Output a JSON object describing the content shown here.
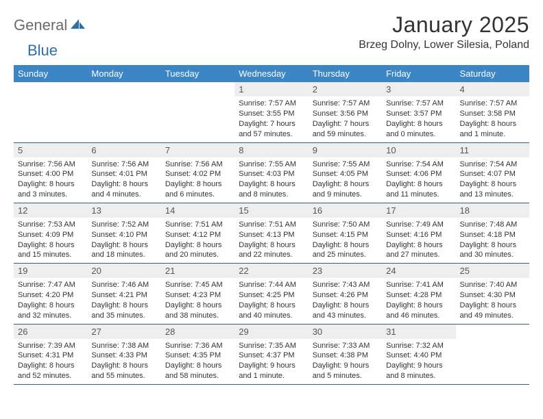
{
  "logo": {
    "part1": "General",
    "part2": "Blue"
  },
  "title": "January 2025",
  "location": "Brzeg Dolny, Lower Silesia, Poland",
  "weekday_header_bg": "#3d86c6",
  "weekday_header_fg": "#ffffff",
  "daynum_bg": "#eeeeee",
  "rule_color": "#2b5d89",
  "weekdays": [
    "Sunday",
    "Monday",
    "Tuesday",
    "Wednesday",
    "Thursday",
    "Friday",
    "Saturday"
  ],
  "weeks": [
    [
      null,
      null,
      null,
      {
        "n": "1",
        "sunrise": "7:57 AM",
        "sunset": "3:55 PM",
        "daylight": "7 hours and 57 minutes."
      },
      {
        "n": "2",
        "sunrise": "7:57 AM",
        "sunset": "3:56 PM",
        "daylight": "7 hours and 59 minutes."
      },
      {
        "n": "3",
        "sunrise": "7:57 AM",
        "sunset": "3:57 PM",
        "daylight": "8 hours and 0 minutes."
      },
      {
        "n": "4",
        "sunrise": "7:57 AM",
        "sunset": "3:58 PM",
        "daylight": "8 hours and 1 minute."
      }
    ],
    [
      {
        "n": "5",
        "sunrise": "7:56 AM",
        "sunset": "4:00 PM",
        "daylight": "8 hours and 3 minutes."
      },
      {
        "n": "6",
        "sunrise": "7:56 AM",
        "sunset": "4:01 PM",
        "daylight": "8 hours and 4 minutes."
      },
      {
        "n": "7",
        "sunrise": "7:56 AM",
        "sunset": "4:02 PM",
        "daylight": "8 hours and 6 minutes."
      },
      {
        "n": "8",
        "sunrise": "7:55 AM",
        "sunset": "4:03 PM",
        "daylight": "8 hours and 8 minutes."
      },
      {
        "n": "9",
        "sunrise": "7:55 AM",
        "sunset": "4:05 PM",
        "daylight": "8 hours and 9 minutes."
      },
      {
        "n": "10",
        "sunrise": "7:54 AM",
        "sunset": "4:06 PM",
        "daylight": "8 hours and 11 minutes."
      },
      {
        "n": "11",
        "sunrise": "7:54 AM",
        "sunset": "4:07 PM",
        "daylight": "8 hours and 13 minutes."
      }
    ],
    [
      {
        "n": "12",
        "sunrise": "7:53 AM",
        "sunset": "4:09 PM",
        "daylight": "8 hours and 15 minutes."
      },
      {
        "n": "13",
        "sunrise": "7:52 AM",
        "sunset": "4:10 PM",
        "daylight": "8 hours and 18 minutes."
      },
      {
        "n": "14",
        "sunrise": "7:51 AM",
        "sunset": "4:12 PM",
        "daylight": "8 hours and 20 minutes."
      },
      {
        "n": "15",
        "sunrise": "7:51 AM",
        "sunset": "4:13 PM",
        "daylight": "8 hours and 22 minutes."
      },
      {
        "n": "16",
        "sunrise": "7:50 AM",
        "sunset": "4:15 PM",
        "daylight": "8 hours and 25 minutes."
      },
      {
        "n": "17",
        "sunrise": "7:49 AM",
        "sunset": "4:16 PM",
        "daylight": "8 hours and 27 minutes."
      },
      {
        "n": "18",
        "sunrise": "7:48 AM",
        "sunset": "4:18 PM",
        "daylight": "8 hours and 30 minutes."
      }
    ],
    [
      {
        "n": "19",
        "sunrise": "7:47 AM",
        "sunset": "4:20 PM",
        "daylight": "8 hours and 32 minutes."
      },
      {
        "n": "20",
        "sunrise": "7:46 AM",
        "sunset": "4:21 PM",
        "daylight": "8 hours and 35 minutes."
      },
      {
        "n": "21",
        "sunrise": "7:45 AM",
        "sunset": "4:23 PM",
        "daylight": "8 hours and 38 minutes."
      },
      {
        "n": "22",
        "sunrise": "7:44 AM",
        "sunset": "4:25 PM",
        "daylight": "8 hours and 40 minutes."
      },
      {
        "n": "23",
        "sunrise": "7:43 AM",
        "sunset": "4:26 PM",
        "daylight": "8 hours and 43 minutes."
      },
      {
        "n": "24",
        "sunrise": "7:41 AM",
        "sunset": "4:28 PM",
        "daylight": "8 hours and 46 minutes."
      },
      {
        "n": "25",
        "sunrise": "7:40 AM",
        "sunset": "4:30 PM",
        "daylight": "8 hours and 49 minutes."
      }
    ],
    [
      {
        "n": "26",
        "sunrise": "7:39 AM",
        "sunset": "4:31 PM",
        "daylight": "8 hours and 52 minutes."
      },
      {
        "n": "27",
        "sunrise": "7:38 AM",
        "sunset": "4:33 PM",
        "daylight": "8 hours and 55 minutes."
      },
      {
        "n": "28",
        "sunrise": "7:36 AM",
        "sunset": "4:35 PM",
        "daylight": "8 hours and 58 minutes."
      },
      {
        "n": "29",
        "sunrise": "7:35 AM",
        "sunset": "4:37 PM",
        "daylight": "9 hours and 1 minute."
      },
      {
        "n": "30",
        "sunrise": "7:33 AM",
        "sunset": "4:38 PM",
        "daylight": "9 hours and 5 minutes."
      },
      {
        "n": "31",
        "sunrise": "7:32 AM",
        "sunset": "4:40 PM",
        "daylight": "9 hours and 8 minutes."
      },
      null
    ]
  ],
  "labels": {
    "sunrise": "Sunrise:",
    "sunset": "Sunset:",
    "daylight": "Daylight:"
  }
}
